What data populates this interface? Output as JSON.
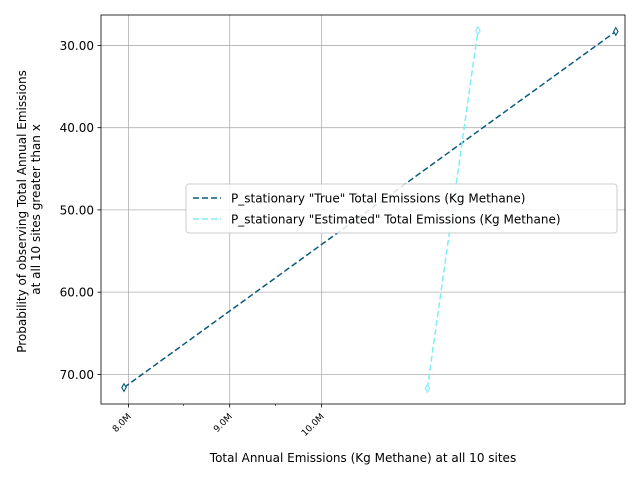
{
  "chart_data": {
    "type": "line",
    "title": "",
    "xlabel": "Total Annual Emissions (Kg Methane) at all 10 sites",
    "ylabel_lines": [
      "Probability of observing Total Annual Emissions",
      "at all 10 sites greater than x"
    ],
    "x_ticks": [
      {
        "value": 7950000,
        "label": "8.0M"
      },
      {
        "value": 9050000,
        "label": "9.0M"
      },
      {
        "value": 10050000,
        "label": "10.0M"
      }
    ],
    "x_minor_ticks": [
      8550000,
      9550000
    ],
    "y_ticks": [
      {
        "value": 30,
        "label": "30.00"
      },
      {
        "value": 40,
        "label": "40.00"
      },
      {
        "value": 50,
        "label": "50.00"
      },
      {
        "value": 60,
        "label": "60.00"
      },
      {
        "value": 70,
        "label": "70.00"
      }
    ],
    "xlim": [
      7650000,
      13350000
    ],
    "ylim": [
      73.6,
      26.3
    ],
    "y_inverted": true,
    "grid": true,
    "legend_position": "center-right",
    "series": [
      {
        "name": "P_stationary \"True\" Total Emissions (Kg Methane)",
        "color": "#0a5a7a",
        "dash": "6,3",
        "marker": "thin_diamond",
        "x": [
          7900000,
          13250000
        ],
        "y": [
          71.6,
          28.3
        ]
      },
      {
        "name": "P_stationary \"Estimated\" Total Emissions (Kg Methane)",
        "color": "#7eeefa",
        "dash": "6,3",
        "marker": "thin_diamond",
        "x": [
          11200000,
          11750000
        ],
        "y": [
          71.7,
          28.2
        ]
      }
    ]
  }
}
